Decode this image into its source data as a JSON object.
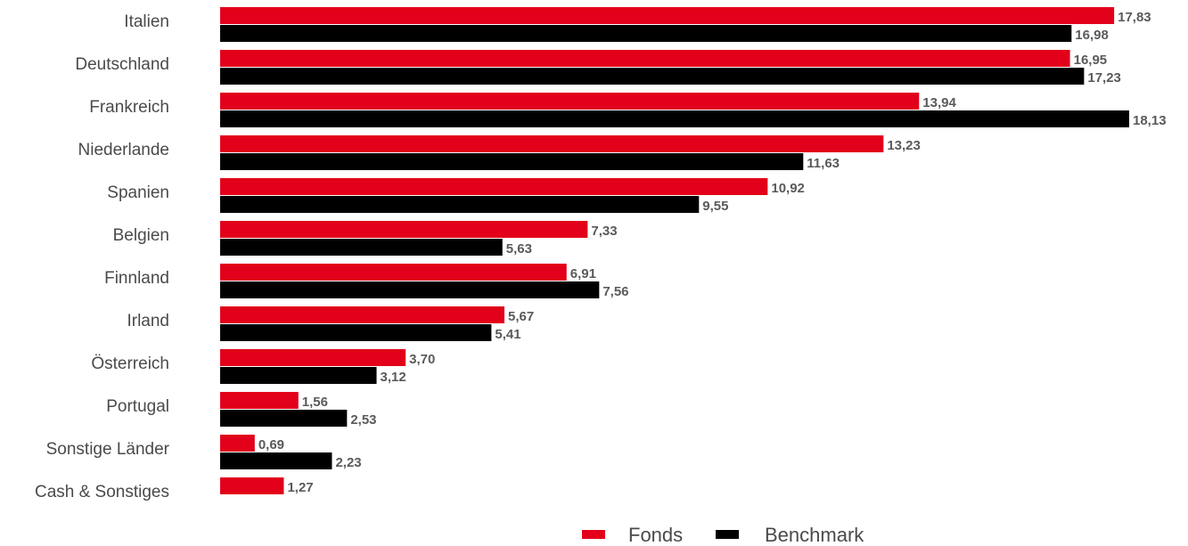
{
  "chart_data": {
    "type": "bar",
    "orientation": "horizontal",
    "categories": [
      "Italien",
      "Deutschland",
      "Frankreich",
      "Niederlande",
      "Spanien",
      "Belgien",
      "Finnland",
      "Irland",
      "Österreich",
      "Portugal",
      "Sonstige Länder",
      "Cash & Sonstiges"
    ],
    "series": [
      {
        "name": "Fonds",
        "color": "#e2001a",
        "values": [
          17.83,
          16.95,
          13.94,
          13.23,
          10.92,
          7.33,
          6.91,
          5.67,
          3.7,
          1.56,
          0.69,
          1.27
        ],
        "labels": [
          "17,83",
          "16,95",
          "13,94",
          "13,23",
          "10,92",
          "7,33",
          "6,91",
          "5,67",
          "3,70",
          "1,56",
          "0,69",
          "1,27"
        ]
      },
      {
        "name": "Benchmark",
        "color": "#000000",
        "values": [
          16.98,
          17.23,
          18.13,
          11.63,
          9.55,
          5.63,
          7.56,
          5.41,
          3.12,
          2.53,
          2.23,
          null
        ],
        "labels": [
          "16,98",
          "17,23",
          "18,13",
          "11,63",
          "9,55",
          "5,63",
          "7,56",
          "5,41",
          "3,12",
          "2,53",
          "2,23",
          ""
        ]
      }
    ],
    "xlim": [
      0,
      18.13
    ],
    "grid": false,
    "legend_position": "bottom"
  }
}
